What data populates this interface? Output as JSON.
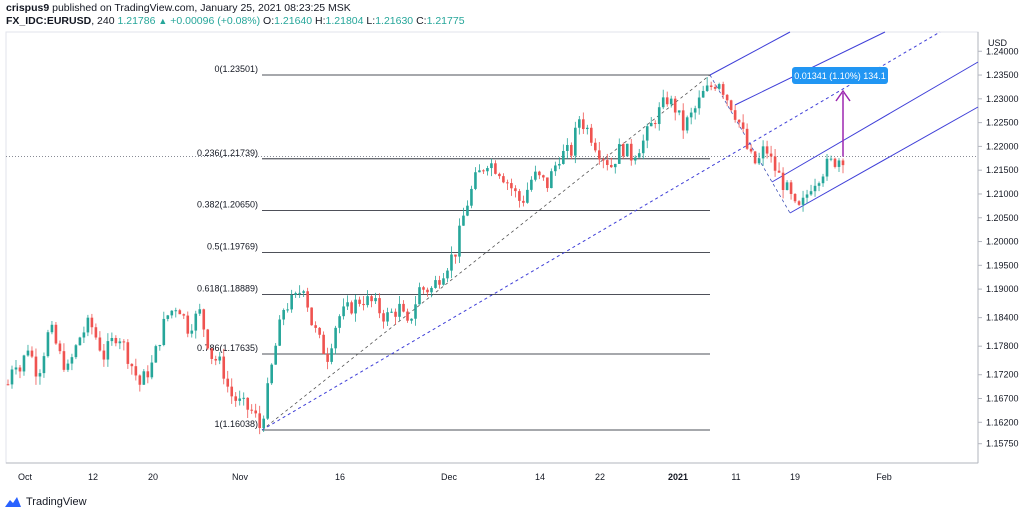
{
  "header": {
    "author": "crispus9",
    "published_text": "published on TradingView.com, January 25, 2021 08:23:25 MSK",
    "symbol": "FX_IDC:EURUSD",
    "interval": "240",
    "last": "1.21786",
    "change": "+0.00096 (+0.08%)",
    "o_label": "O:",
    "o_value": "1.21640",
    "h_label": "H:",
    "h_value": "1.21804",
    "l_label": "L:",
    "l_value": "1.21630",
    "c_label": "C:",
    "c_value": "1.21775"
  },
  "footer": {
    "brand": "TradingView"
  },
  "chart_data": {
    "type": "candlestick",
    "currency_label": "USD",
    "y_ticks": [
      "1.24000",
      "1.23500",
      "1.23000",
      "1.22500",
      "1.22000",
      "1.21500",
      "1.21000",
      "1.20500",
      "1.20000",
      "1.19500",
      "1.19000",
      "1.18400",
      "1.17800",
      "1.17200",
      "1.16700",
      "1.16200",
      "1.15750"
    ],
    "y_tick_values": [
      1.24,
      1.235,
      1.23,
      1.225,
      1.22,
      1.215,
      1.21,
      1.205,
      1.2,
      1.195,
      1.19,
      1.184,
      1.178,
      1.172,
      1.167,
      1.162,
      1.1575
    ],
    "x_ticks": [
      "Oct",
      "12",
      "20",
      "Nov",
      "16",
      "Dec",
      "14",
      "22",
      "2021",
      "11",
      "19",
      "Feb"
    ],
    "fib_levels": [
      {
        "label": "0(1.23501)",
        "value": 1.23501
      },
      {
        "label": "0.236(1.21739)",
        "value": 1.21739
      },
      {
        "label": "0.382(1.20650)",
        "value": 1.2065
      },
      {
        "label": "0.5(1.19769)",
        "value": 1.19769
      },
      {
        "label": "0.618(1.18889)",
        "value": 1.18889
      },
      {
        "label": "0.786(1.17635)",
        "value": 1.17635
      },
      {
        "label": "1(1.16038)",
        "value": 1.16038
      }
    ],
    "measure_label": "0.01341 (1.10%) 134.1",
    "current_price": 1.21786,
    "close_path": [
      {
        "t": 0,
        "v": 1.17
      },
      {
        "t": 6,
        "v": 1.176
      },
      {
        "t": 12,
        "v": 1.173
      },
      {
        "t": 20,
        "v": 1.178
      },
      {
        "t": 30,
        "v": 1.172
      },
      {
        "t": 42,
        "v": 1.182
      },
      {
        "t": 52,
        "v": 1.176
      },
      {
        "t": 60,
        "v": 1.173
      },
      {
        "t": 72,
        "v": 1.18
      },
      {
        "t": 82,
        "v": 1.183
      },
      {
        "t": 96,
        "v": 1.176
      },
      {
        "t": 110,
        "v": 1.181
      },
      {
        "t": 122,
        "v": 1.175
      },
      {
        "t": 132,
        "v": 1.17
      },
      {
        "t": 144,
        "v": 1.174
      },
      {
        "t": 158,
        "v": 1.184
      },
      {
        "t": 170,
        "v": 1.187
      },
      {
        "t": 180,
        "v": 1.182
      },
      {
        "t": 192,
        "v": 1.185
      },
      {
        "t": 204,
        "v": 1.176
      },
      {
        "t": 214,
        "v": 1.174
      },
      {
        "t": 222,
        "v": 1.168
      },
      {
        "t": 232,
        "v": 1.166
      },
      {
        "t": 246,
        "v": 1.164
      },
      {
        "t": 252,
        "v": 1.161
      },
      {
        "t": 258,
        "v": 1.166
      },
      {
        "t": 266,
        "v": 1.176
      },
      {
        "t": 276,
        "v": 1.186
      },
      {
        "t": 288,
        "v": 1.188
      },
      {
        "t": 296,
        "v": 1.191
      },
      {
        "t": 304,
        "v": 1.183
      },
      {
        "t": 314,
        "v": 1.178
      },
      {
        "t": 320,
        "v": 1.176
      },
      {
        "t": 330,
        "v": 1.184
      },
      {
        "t": 342,
        "v": 1.186
      },
      {
        "t": 354,
        "v": 1.188
      },
      {
        "t": 366,
        "v": 1.187
      },
      {
        "t": 378,
        "v": 1.184
      },
      {
        "t": 392,
        "v": 1.186
      },
      {
        "t": 400,
        "v": 1.182
      },
      {
        "t": 412,
        "v": 1.19
      },
      {
        "t": 424,
        "v": 1.19
      },
      {
        "t": 436,
        "v": 1.194
      },
      {
        "t": 448,
        "v": 1.198
      },
      {
        "t": 458,
        "v": 1.207
      },
      {
        "t": 468,
        "v": 1.213
      },
      {
        "t": 480,
        "v": 1.217
      },
      {
        "t": 492,
        "v": 1.215
      },
      {
        "t": 502,
        "v": 1.212
      },
      {
        "t": 514,
        "v": 1.208
      },
      {
        "t": 526,
        "v": 1.214
      },
      {
        "t": 540,
        "v": 1.212
      },
      {
        "t": 552,
        "v": 1.218
      },
      {
        "t": 564,
        "v": 1.219
      },
      {
        "t": 572,
        "v": 1.226
      },
      {
        "t": 582,
        "v": 1.223
      },
      {
        "t": 592,
        "v": 1.219
      },
      {
        "t": 604,
        "v": 1.216
      },
      {
        "t": 614,
        "v": 1.22
      },
      {
        "t": 624,
        "v": 1.218
      },
      {
        "t": 636,
        "v": 1.221
      },
      {
        "t": 648,
        "v": 1.226
      },
      {
        "t": 660,
        "v": 1.23
      },
      {
        "t": 668,
        "v": 1.228
      },
      {
        "t": 676,
        "v": 1.224
      },
      {
        "t": 686,
        "v": 1.227
      },
      {
        "t": 696,
        "v": 1.231
      },
      {
        "t": 706,
        "v": 1.233
      },
      {
        "t": 712,
        "v": 1.234
      },
      {
        "t": 718,
        "v": 1.231
      },
      {
        "t": 726,
        "v": 1.228
      },
      {
        "t": 734,
        "v": 1.224
      },
      {
        "t": 742,
        "v": 1.218
      },
      {
        "t": 750,
        "v": 1.216
      },
      {
        "t": 758,
        "v": 1.22
      },
      {
        "t": 766,
        "v": 1.216
      },
      {
        "t": 774,
        "v": 1.213
      },
      {
        "t": 782,
        "v": 1.21
      },
      {
        "t": 790,
        "v": 1.206
      },
      {
        "t": 796,
        "v": 1.208
      },
      {
        "t": 804,
        "v": 1.212
      },
      {
        "t": 812,
        "v": 1.214
      },
      {
        "t": 820,
        "v": 1.216
      },
      {
        "t": 828,
        "v": 1.217
      },
      {
        "t": 836,
        "v": 1.2178
      }
    ]
  }
}
